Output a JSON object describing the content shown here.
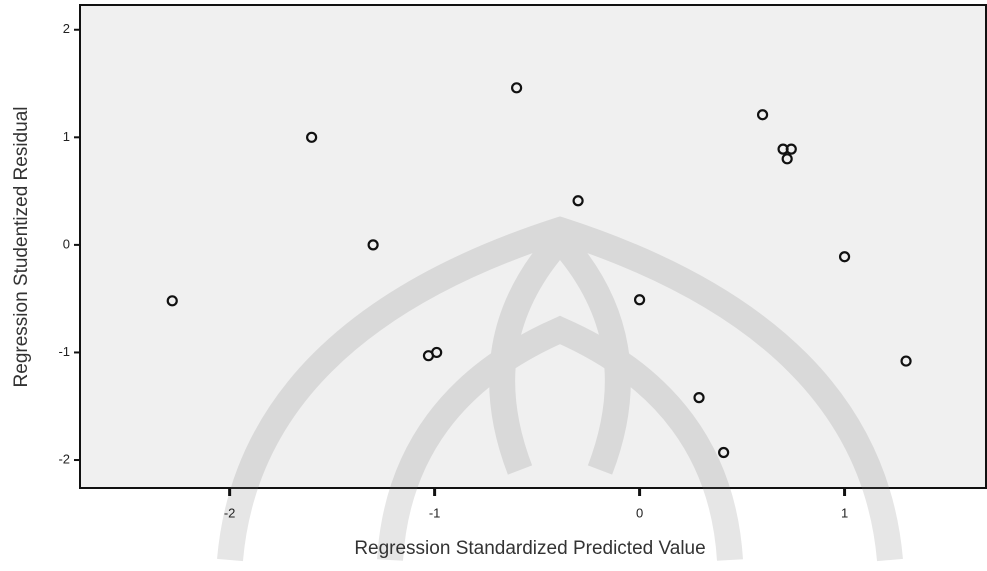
{
  "chart_data": {
    "type": "scatter",
    "xlabel": "Regression Standardized Predicted Value",
    "ylabel": "Regression Studentized Residual",
    "x": [
      -2.28,
      -1.6,
      -1.3,
      -1.03,
      -0.99,
      -0.6,
      -0.3,
      0.0,
      0.29,
      0.41,
      0.6,
      0.7,
      0.74,
      0.72,
      1.0,
      1.3
    ],
    "values": [
      -0.52,
      1.0,
      0.0,
      -1.03,
      -1.0,
      1.46,
      0.41,
      -0.51,
      -1.42,
      -1.93,
      1.21,
      0.89,
      0.89,
      0.8,
      -0.11,
      -1.08
    ],
    "color": "#111111",
    "xlim": [
      -2.73,
      1.69
    ],
    "xticks": [
      -2,
      -1,
      0,
      1
    ],
    "ylim": [
      -2.26,
      2.23
    ],
    "yticks": [
      2,
      1,
      0,
      -1,
      -2
    ],
    "grid": false
  }
}
